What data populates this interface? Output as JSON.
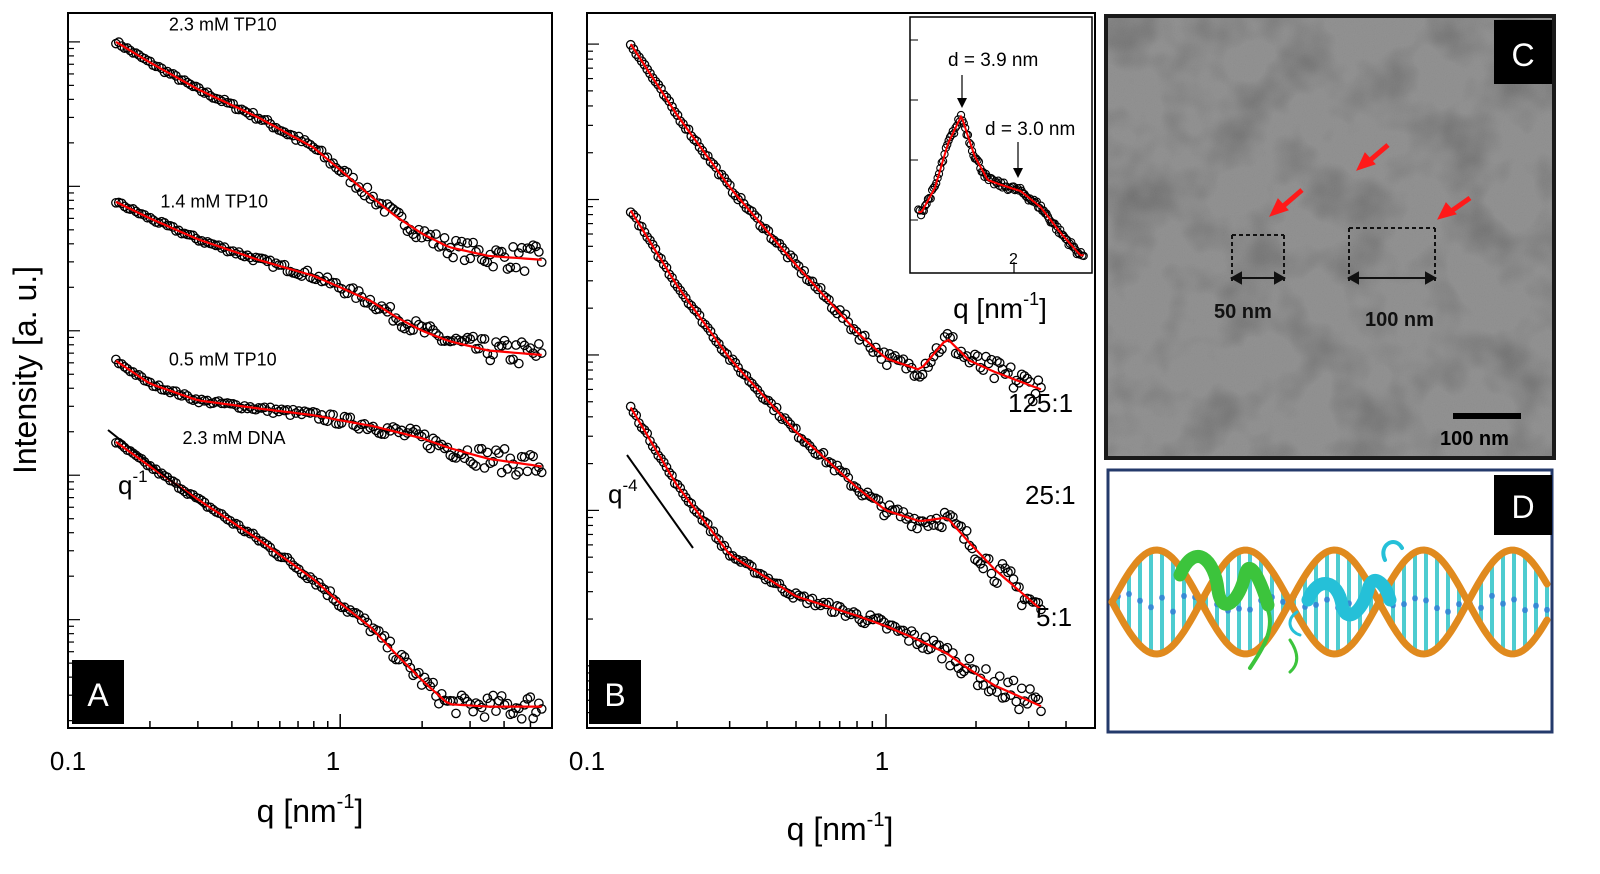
{
  "figure": {
    "axis_titles": {
      "y": "Intensity [a. u.]",
      "x_A": "q [nm",
      "x_B": "q [nm",
      "x_inset": "q [nm",
      "x_sup": "-1"
    },
    "panel_labels": {
      "A": "A",
      "B": "B",
      "C": "C",
      "D": "D"
    },
    "tem": {
      "dim1": "50 nm",
      "dim2": "100 nm",
      "scale_bar": "100 nm"
    },
    "colors": {
      "fit": "#ff0000",
      "marker": "#000000",
      "tem_bg": "#8a8a8a",
      "dna_backbone": "#e08a1e",
      "dna_bases": "#2ec4c8",
      "peptide_green": "#3cc43c",
      "peptide_cyan": "#25c0d8",
      "panel_D_border": "#243a6b",
      "arrow_red": "#ff1a1a"
    }
  },
  "chart_data": [
    {
      "panel": "A",
      "type": "scatter",
      "xlabel": "q [nm^-1]",
      "ylabel": "Intensity [a. u.]",
      "x_scale": "log",
      "y_scale": "log",
      "xlim": [
        0.1,
        6
      ],
      "x_ticks": [
        "0.1",
        "1"
      ],
      "series": [
        {
          "name": "2.3 mM TP10",
          "x": [
            0.15,
            0.2,
            0.3,
            0.5,
            0.8,
            1.0,
            1.3,
            1.6,
            2.0,
            2.5,
            3.5,
            5.5
          ],
          "y": [
            1.0,
            0.72,
            0.47,
            0.3,
            0.185,
            0.13,
            0.085,
            0.062,
            0.047,
            0.038,
            0.033,
            0.031
          ]
        },
        {
          "name": "1.4 mM TP10",
          "x": [
            0.15,
            0.2,
            0.3,
            0.5,
            0.8,
            1.0,
            1.3,
            1.6,
            2.0,
            2.5,
            3.5,
            5.5
          ],
          "y": [
            0.078,
            0.06,
            0.043,
            0.031,
            0.024,
            0.02,
            0.016,
            0.0125,
            0.01,
            0.0085,
            0.0073,
            0.0068
          ]
        },
        {
          "name": "0.5 mM TP10",
          "x": [
            0.15,
            0.2,
            0.3,
            0.5,
            0.8,
            1.0,
            1.3,
            1.6,
            2.0,
            2.5,
            3.5,
            5.5
          ],
          "y": [
            0.0062,
            0.0043,
            0.0033,
            0.0029,
            0.0026,
            0.0024,
            0.0022,
            0.002,
            0.0018,
            0.00155,
            0.0013,
            0.00115
          ]
        },
        {
          "name": "2.3 mM DNA",
          "x": [
            0.15,
            0.2,
            0.3,
            0.5,
            0.8,
            1.0,
            1.3,
            1.6,
            2.0,
            2.5,
            3.5,
            5.5
          ],
          "y": [
            0.0017,
            0.00115,
            0.00068,
            0.00036,
            0.00019,
            0.00013,
            8.8e-05,
            5.8e-05,
            3.8e-05,
            2.6e-05,
            2.5e-05,
            2.5e-05
          ]
        }
      ],
      "annotations": [
        {
          "text": "q",
          "sup": "-1"
        }
      ]
    },
    {
      "panel": "B",
      "type": "scatter",
      "xlabel": "q [nm^-1]",
      "x_scale": "log",
      "y_scale": "log",
      "xlim": [
        0.1,
        5
      ],
      "x_ticks": [
        "0.1",
        "1"
      ],
      "series": [
        {
          "name": "125:1",
          "x": [
            0.14,
            0.2,
            0.3,
            0.5,
            0.8,
            1.0,
            1.3,
            1.6,
            1.9,
            2.3,
            3.3
          ],
          "y": [
            1.0,
            0.35,
            0.12,
            0.038,
            0.014,
            0.0095,
            0.008,
            0.0128,
            0.0092,
            0.0078,
            0.006
          ]
        },
        {
          "name": "25:1",
          "x": [
            0.14,
            0.2,
            0.3,
            0.5,
            0.8,
            1.0,
            1.3,
            1.6,
            1.9,
            2.3,
            3.3
          ],
          "y": [
            0.085,
            0.028,
            0.0095,
            0.0032,
            0.0014,
            0.001,
            0.00085,
            0.0009,
            0.00062,
            0.00042,
            0.00023
          ]
        },
        {
          "name": "5:1",
          "x": [
            0.14,
            0.2,
            0.3,
            0.5,
            0.8,
            1.0,
            1.3,
            1.6,
            1.9,
            2.3,
            3.3
          ],
          "y": [
            0.0046,
            0.00145,
            0.00052,
            0.00028,
            0.00021,
            0.00018,
            0.000145,
            0.00012,
            9.5e-05,
            7.5e-05,
            5.5e-05
          ]
        }
      ],
      "annotations": [
        {
          "text": "q",
          "sup": "-4"
        }
      ]
    },
    {
      "panel": "B-inset",
      "type": "scatter",
      "xlabel": "q [nm^-1]",
      "x_ticks": [
        "2"
      ],
      "annotations": [
        {
          "text": "d = 3.9 nm"
        },
        {
          "text": "d = 3.0 nm"
        }
      ],
      "series": [
        {
          "name": "125:1 (peak region)",
          "x": [
            1.0,
            1.2,
            1.4,
            1.6,
            1.8,
            2.0,
            2.2,
            2.5,
            2.8,
            3.1,
            3.4
          ],
          "y": [
            0.35,
            0.5,
            0.78,
            0.95,
            0.7,
            0.55,
            0.52,
            0.48,
            0.38,
            0.22,
            0.08
          ]
        }
      ]
    }
  ]
}
